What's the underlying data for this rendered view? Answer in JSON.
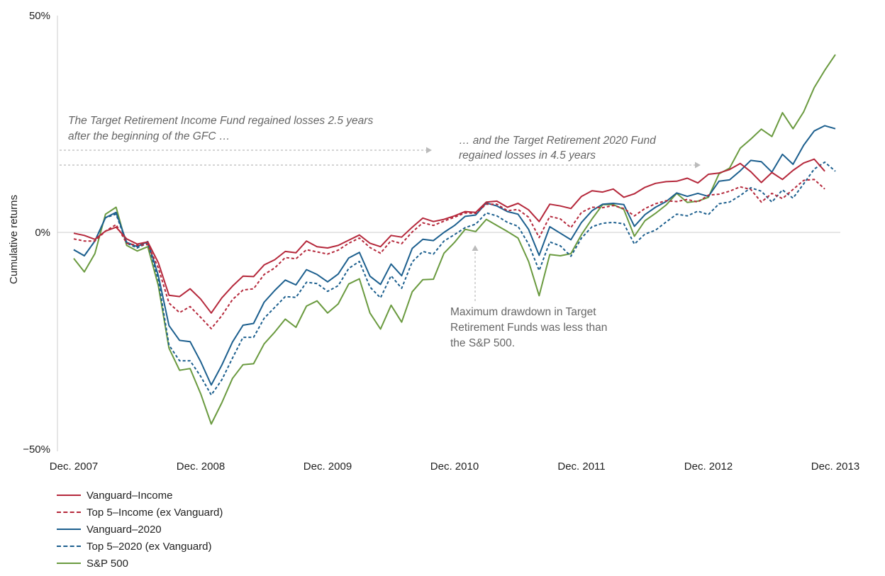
{
  "chart_data": {
    "type": "line",
    "ylabel": "Cumulative returns",
    "ylim": [
      -50,
      50
    ],
    "yticks": [
      {
        "value": 50,
        "label": "50%"
      },
      {
        "value": 0,
        "label": "0%"
      },
      {
        "value": -50,
        "label": "−50%"
      }
    ],
    "xlim": [
      0,
      73
    ],
    "xticks": [
      {
        "value": 0,
        "label": "Dec. 2007"
      },
      {
        "value": 12,
        "label": "Dec. 2008"
      },
      {
        "value": 24,
        "label": "Dec. 2009"
      },
      {
        "value": 36,
        "label": "Dec. 2010"
      },
      {
        "value": 48,
        "label": "Dec. 2011"
      },
      {
        "value": 60,
        "label": "Dec. 2012"
      },
      {
        "value": 72,
        "label": "Dec. 2013"
      }
    ],
    "series": [
      {
        "name": "Vanguard–Income",
        "color": "#b5283b",
        "dash": "solid",
        "values": [
          -0.2,
          -0.7,
          -1.6,
          0.3,
          1.2,
          -1.5,
          -2.7,
          -2.2,
          -7.0,
          -14.5,
          -14.8,
          -13.0,
          -15.4,
          -18.6,
          -15.1,
          -12.4,
          -10.1,
          -10.2,
          -7.5,
          -6.3,
          -4.4,
          -4.7,
          -2.0,
          -3.3,
          -3.6,
          -3.0,
          -1.8,
          -0.6,
          -2.5,
          -3.3,
          -0.7,
          -1.1,
          1.2,
          3.3,
          2.5,
          3.0,
          3.8,
          4.8,
          4.6,
          7.0,
          7.2,
          5.8,
          6.7,
          5.2,
          2.5,
          6.5,
          6.1,
          5.5,
          8.3,
          9.6,
          9.3,
          10.0,
          8.1,
          8.9,
          10.4,
          11.3,
          11.7,
          11.8,
          12.5,
          11.4,
          13.4,
          13.7,
          14.5,
          15.9,
          14.0,
          11.5,
          13.8,
          12.2,
          14.3,
          16.0,
          16.9,
          14.1
        ]
      },
      {
        "name": "Top 5–Income (ex Vanguard)",
        "color": "#b5283b",
        "dash": "dashed",
        "values": [
          -1.5,
          -2.0,
          -2.0,
          0.3,
          1.8,
          -2.5,
          -3.0,
          -2.8,
          -8.2,
          -16.3,
          -18.5,
          -17.1,
          -19.6,
          -22.2,
          -19.2,
          -15.5,
          -13.3,
          -13.0,
          -9.7,
          -8.2,
          -5.8,
          -6.1,
          -4.0,
          -4.5,
          -5.0,
          -4.1,
          -2.5,
          -1.3,
          -3.5,
          -4.8,
          -1.9,
          -2.6,
          0.1,
          2.2,
          1.6,
          2.6,
          3.5,
          4.5,
          4.4,
          6.5,
          6.5,
          5.0,
          5.3,
          3.5,
          -1.2,
          3.7,
          3.1,
          1.1,
          4.6,
          5.8,
          5.7,
          6.2,
          5.5,
          3.8,
          5.5,
          6.6,
          7.3,
          7.1,
          7.6,
          7.0,
          8.6,
          8.8,
          9.5,
          10.5,
          9.9,
          7.0,
          9.0,
          7.8,
          9.9,
          12.0,
          12.2,
          10.0
        ]
      },
      {
        "name": "Vanguard–2020",
        "color": "#1c5f8e",
        "dash": "solid",
        "values": [
          -4.0,
          -5.4,
          -2.0,
          3.4,
          4.6,
          -2.3,
          -3.3,
          -2.1,
          -10.0,
          -21.5,
          -24.9,
          -25.2,
          -29.8,
          -35.2,
          -30.6,
          -25.3,
          -21.4,
          -21.0,
          -16.1,
          -13.4,
          -11.0,
          -12.1,
          -8.6,
          -9.7,
          -11.4,
          -9.6,
          -5.9,
          -4.6,
          -10.1,
          -12.0,
          -7.3,
          -10.0,
          -3.7,
          -1.6,
          -1.9,
          0.0,
          1.6,
          3.7,
          4.0,
          6.8,
          6.1,
          4.8,
          4.2,
          0.7,
          -5.3,
          1.3,
          -0.2,
          -1.7,
          2.3,
          5.0,
          6.5,
          6.7,
          6.4,
          1.4,
          4.1,
          5.8,
          7.1,
          9.1,
          8.3,
          9.0,
          8.3,
          11.8,
          12.1,
          14.2,
          16.6,
          16.3,
          13.9,
          18.0,
          15.7,
          20.1,
          23.4,
          24.6,
          23.9
        ]
      },
      {
        "name": "Top 5–2020 (ex Vanguard)",
        "color": "#1c5f8e",
        "dash": "dashed",
        "values": [
          -4.0,
          -5.4,
          -2.0,
          3.4,
          4.2,
          -2.5,
          -3.6,
          -2.4,
          -11.0,
          -26.0,
          -29.6,
          -29.6,
          -33.2,
          -37.5,
          -34.0,
          -29.0,
          -24.2,
          -24.2,
          -19.8,
          -17.3,
          -14.8,
          -15.0,
          -11.5,
          -11.8,
          -13.6,
          -12.3,
          -8.3,
          -6.7,
          -12.6,
          -15.1,
          -10.0,
          -12.9,
          -6.8,
          -4.4,
          -5.0,
          -2.0,
          -0.5,
          1.1,
          1.9,
          4.5,
          3.8,
          2.3,
          1.4,
          -2.7,
          -8.8,
          -2.2,
          -3.1,
          -5.5,
          -1.3,
          1.3,
          2.1,
          2.3,
          2.0,
          -2.7,
          -0.4,
          0.5,
          2.4,
          4.2,
          3.8,
          4.9,
          4.1,
          6.6,
          7.0,
          8.5,
          10.3,
          9.5,
          7.0,
          9.8,
          7.9,
          11.2,
          14.6,
          16.2,
          14.1
        ]
      },
      {
        "name": "S&P 500",
        "color": "#6a9a3f",
        "dash": "solid",
        "values": [
          -6.0,
          -9.1,
          -4.9,
          4.2,
          5.8,
          -3.0,
          -4.3,
          -3.3,
          -12.3,
          -26.7,
          -31.8,
          -31.4,
          -37.2,
          -44.2,
          -39.3,
          -33.7,
          -30.5,
          -30.3,
          -25.7,
          -23.0,
          -20.0,
          -21.9,
          -17.0,
          -15.8,
          -18.6,
          -16.5,
          -11.9,
          -10.7,
          -18.6,
          -22.3,
          -16.8,
          -20.7,
          -13.7,
          -10.9,
          -10.8,
          -4.8,
          -2.3,
          0.7,
          0.2,
          3.0,
          1.6,
          0.2,
          -1.3,
          -6.7,
          -14.6,
          -5.1,
          -5.4,
          -4.9,
          -0.5,
          3.1,
          6.4,
          6.4,
          5.3,
          -0.9,
          2.7,
          4.4,
          6.3,
          9.0,
          6.9,
          7.2,
          8.1,
          13.5,
          14.8,
          19.4,
          21.5,
          23.8,
          22.1,
          27.6,
          23.9,
          27.8,
          33.4,
          37.4,
          41.0
        ]
      }
    ]
  },
  "annotations": {
    "income_line1": "The Target Retirement Income Fund regained losses 2.5 years",
    "income_line2": "after the beginning of the GFC …",
    "t2020_line1": "… and the Target Retirement 2020 Fund",
    "t2020_line2": "regained losses in 4.5 years",
    "drawdown_line1": "Maximum drawdown in Target",
    "drawdown_line2": "Retirement Funds was less than",
    "drawdown_line3": "the S&P 500."
  },
  "colors": {
    "income": "#b5283b",
    "t2020": "#1c5f8e",
    "sp500": "#6a9a3f",
    "arrow": "#bbbbbb",
    "axis": "#cccccc"
  }
}
